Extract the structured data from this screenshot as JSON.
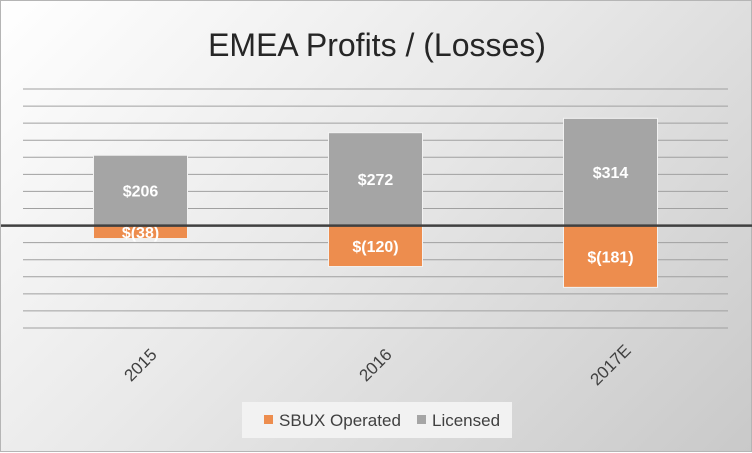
{
  "chart_data": {
    "type": "bar",
    "stacked": true,
    "title": "EMEA Profits / (Losses)",
    "categories": [
      "2015",
      "2016",
      "2017E"
    ],
    "series": [
      {
        "name": "SBUX Operated",
        "values": [
          -38,
          -120,
          -181
        ],
        "labels": [
          "$(38)",
          "$(120)",
          "$(181)"
        ],
        "color": "#ED8D4E"
      },
      {
        "name": "Licensed",
        "values": [
          206,
          272,
          314
        ],
        "labels": [
          "$206",
          "$272",
          "$314"
        ],
        "color": "#A5A5A5"
      }
    ],
    "ylim": [
      -300,
      400
    ],
    "grid": true,
    "legend": "bottom",
    "zero_line_color": "#404040"
  }
}
